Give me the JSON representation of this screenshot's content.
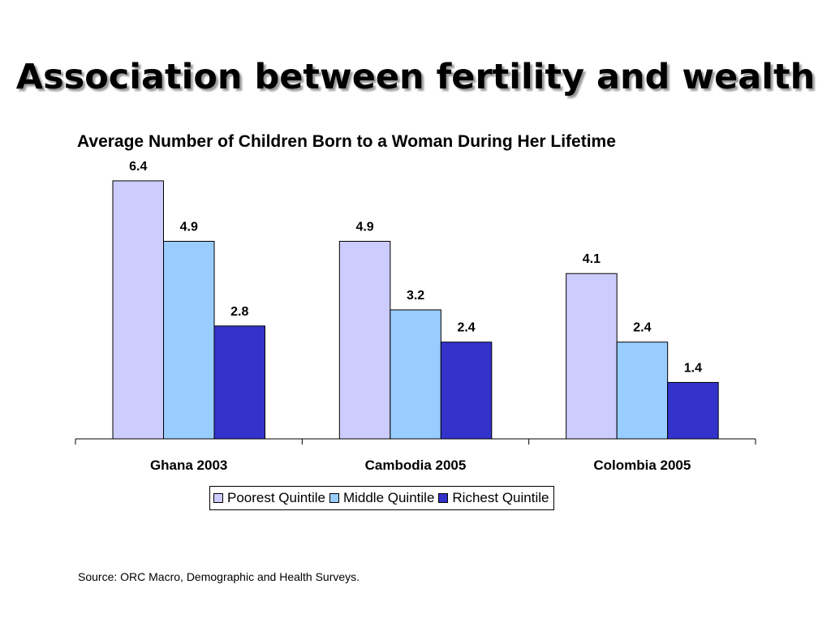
{
  "slide_title": "Association between fertility and wealth",
  "source": "Source: ORC Macro, Demographic and Health Surveys.",
  "colors": {
    "poorest": "#ccccff",
    "middle": "#99ccff",
    "richest": "#3333cc",
    "bar_stroke": "#000000"
  },
  "chart_data": {
    "type": "bar",
    "title": "Average Number of Children Born to a Woman During Her Lifetime",
    "categories": [
      "Ghana 2003",
      "Cambodia 2005",
      "Colombia 2005"
    ],
    "series": [
      {
        "name": "Poorest Quintile",
        "values": [
          6.4,
          4.9,
          4.1
        ],
        "labels": [
          "6.4",
          "4.9",
          "4.1"
        ]
      },
      {
        "name": "Middle Quintile",
        "values": [
          4.9,
          3.2,
          2.4
        ],
        "labels": [
          "4.9",
          "3.2",
          "2.4"
        ]
      },
      {
        "name": "Richest Quintile",
        "values": [
          2.8,
          2.4,
          1.4
        ],
        "labels": [
          "2.8",
          "2.4",
          "1.4"
        ]
      }
    ],
    "xlabel": "",
    "ylabel": "",
    "ylim": [
      0,
      7.5
    ],
    "grid": false,
    "legend": "bottom",
    "data_labels": true
  }
}
